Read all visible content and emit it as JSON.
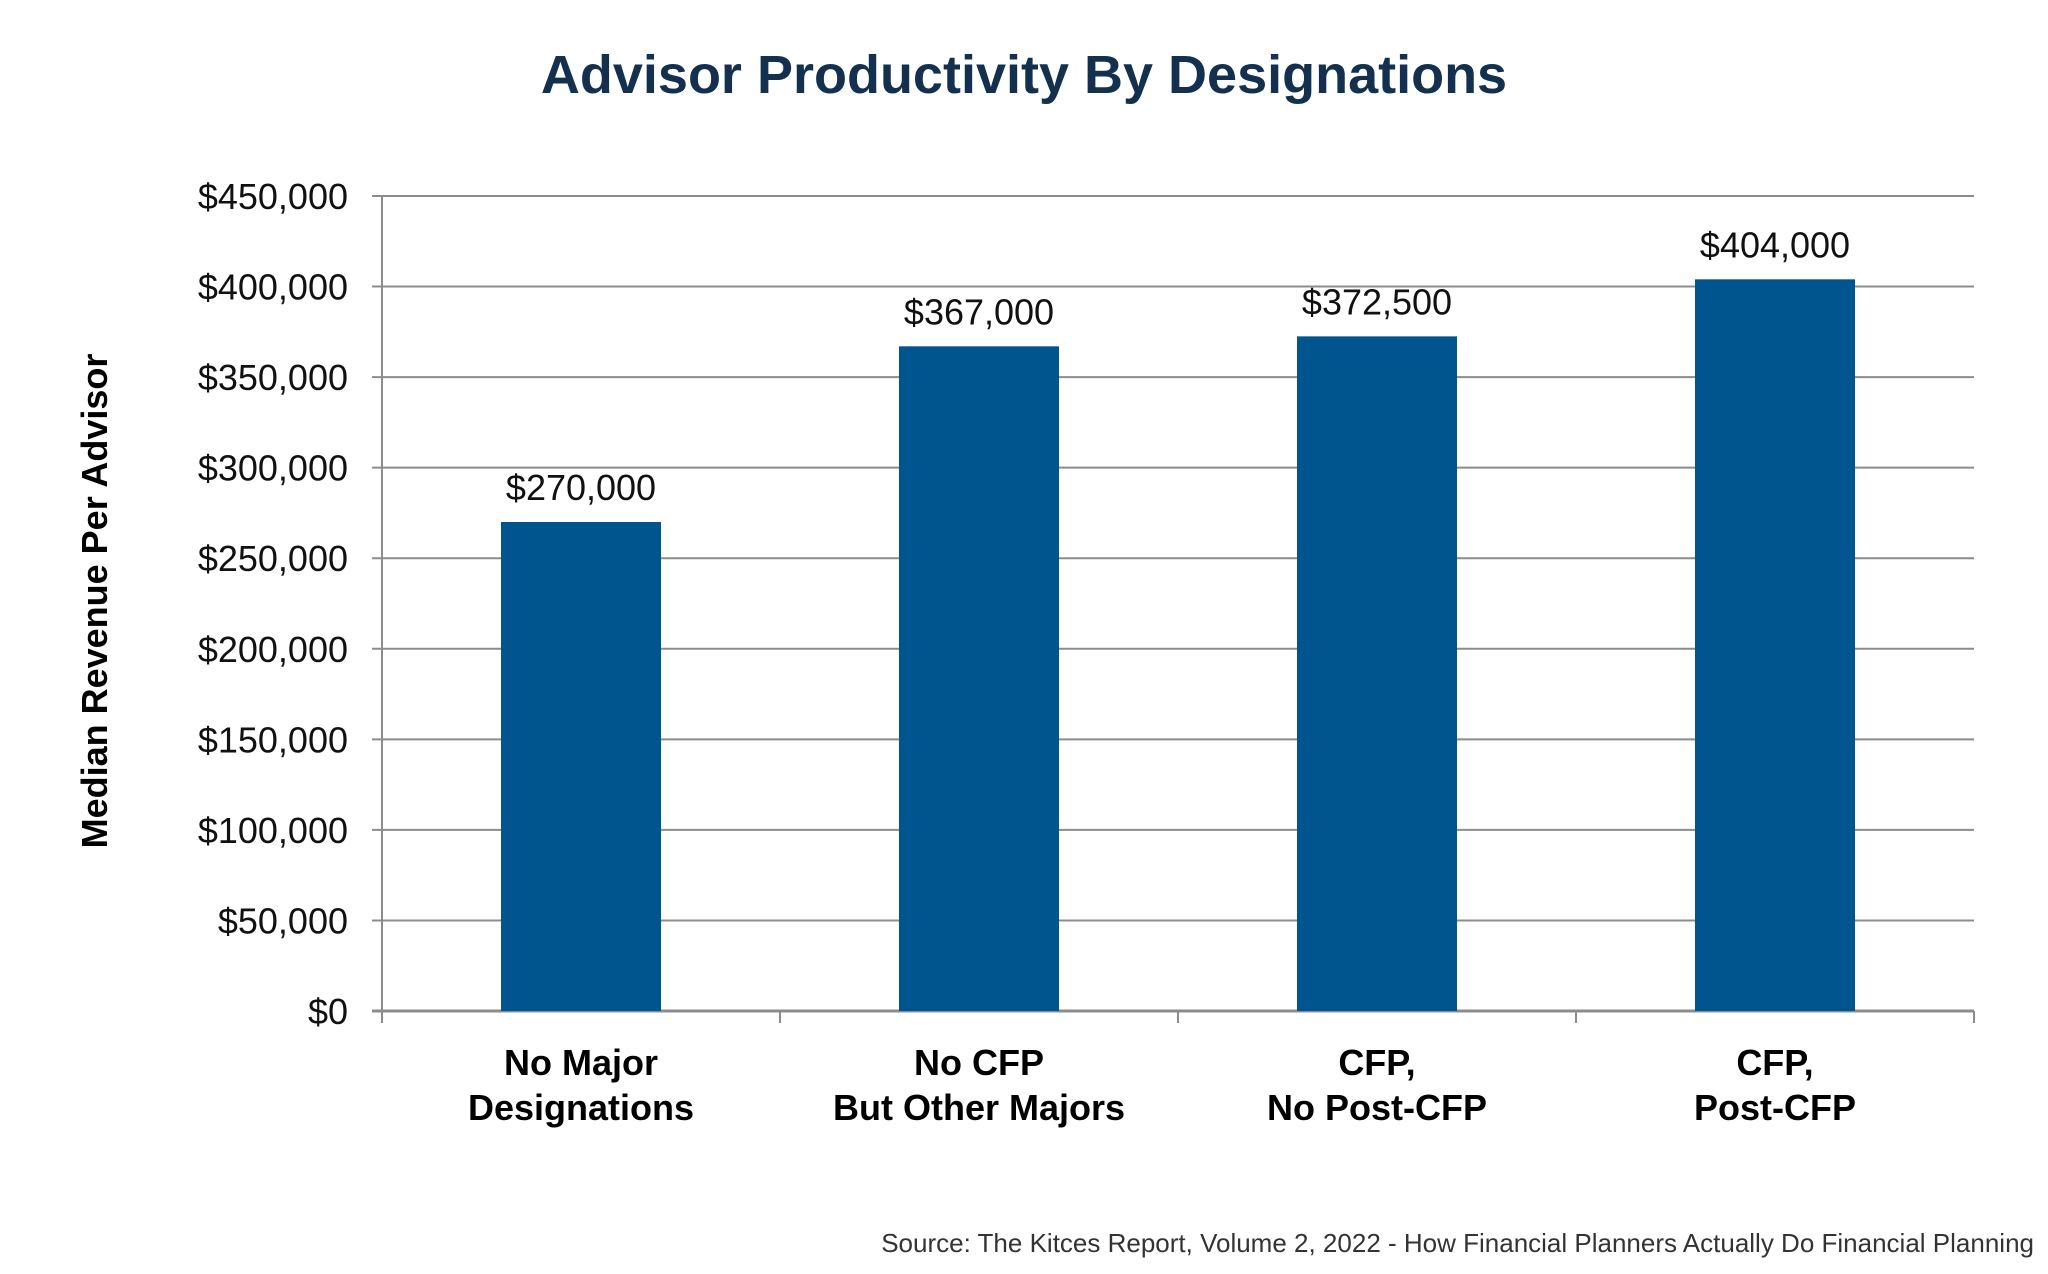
{
  "chart_data": {
    "type": "bar",
    "title": "Advisor Productivity By Designations",
    "xlabel": "",
    "ylabel": "Median Revenue Per Advisor",
    "ylim": [
      0,
      450000
    ],
    "yticks": [
      0,
      50000,
      100000,
      150000,
      200000,
      250000,
      300000,
      350000,
      400000,
      450000
    ],
    "ytick_labels": [
      "$0",
      "$50,000",
      "$100,000",
      "$150,000",
      "$200,000",
      "$250,000",
      "$300,000",
      "$350,000",
      "$400,000",
      "$450,000"
    ],
    "categories": [
      [
        "No Major",
        "Designations"
      ],
      [
        "No CFP",
        "But Other Majors"
      ],
      [
        "CFP,",
        "No Post-CFP"
      ],
      [
        "CFP,",
        "Post-CFP"
      ]
    ],
    "values": [
      270000,
      367000,
      372500,
      404000
    ],
    "data_labels": [
      "$270,000",
      "$367,000",
      "$372,500",
      "$404,000"
    ],
    "grid": true,
    "legend": "none",
    "colors": {
      "bar": "#00558f",
      "title": "#13304f",
      "grid": "#8c8c8c"
    }
  },
  "source": "Source: The Kitces Report, Volume 2, 2022 - How Financial Planners Actually Do Financial Planning"
}
